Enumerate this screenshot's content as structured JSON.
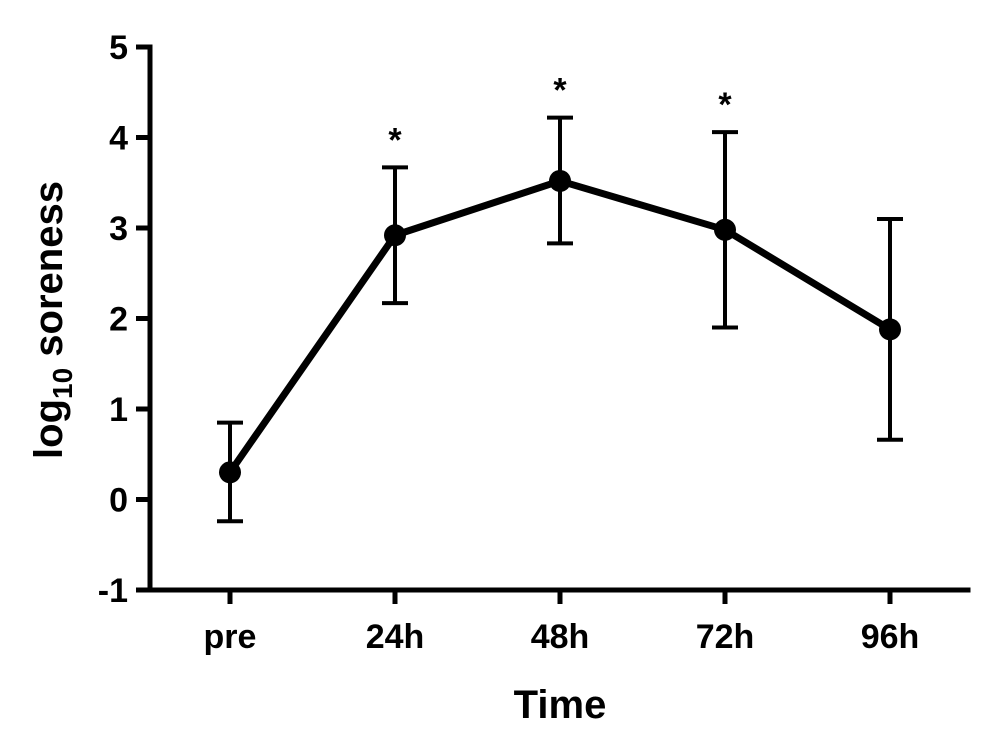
{
  "chart_data": {
    "type": "line",
    "title": "",
    "xlabel": "Time",
    "ylabel": {
      "main": "log",
      "subscript": "10",
      "rest": " soreness"
    },
    "ylim": [
      -1,
      5
    ],
    "yticks": [
      -1,
      0,
      1,
      2,
      3,
      4,
      5
    ],
    "ytick_labels": [
      "-1",
      "0",
      "1",
      "2",
      "3",
      "4",
      "5"
    ],
    "categories": [
      "pre",
      "24h",
      "48h",
      "72h",
      "96h"
    ],
    "series": [
      {
        "name": "log10 soreness",
        "values": [
          0.3,
          2.92,
          3.52,
          2.98,
          1.88
        ],
        "error_upper": [
          0.85,
          3.67,
          4.22,
          4.06,
          3.1
        ],
        "error_lower": [
          -0.24,
          2.17,
          2.83,
          1.9,
          0.66
        ],
        "significance": [
          "",
          "*",
          "*",
          "*",
          ""
        ]
      }
    ],
    "grid": false,
    "legend": "none",
    "colors": {
      "line": "#000000",
      "marker": "#000000",
      "axis": "#000000"
    }
  }
}
